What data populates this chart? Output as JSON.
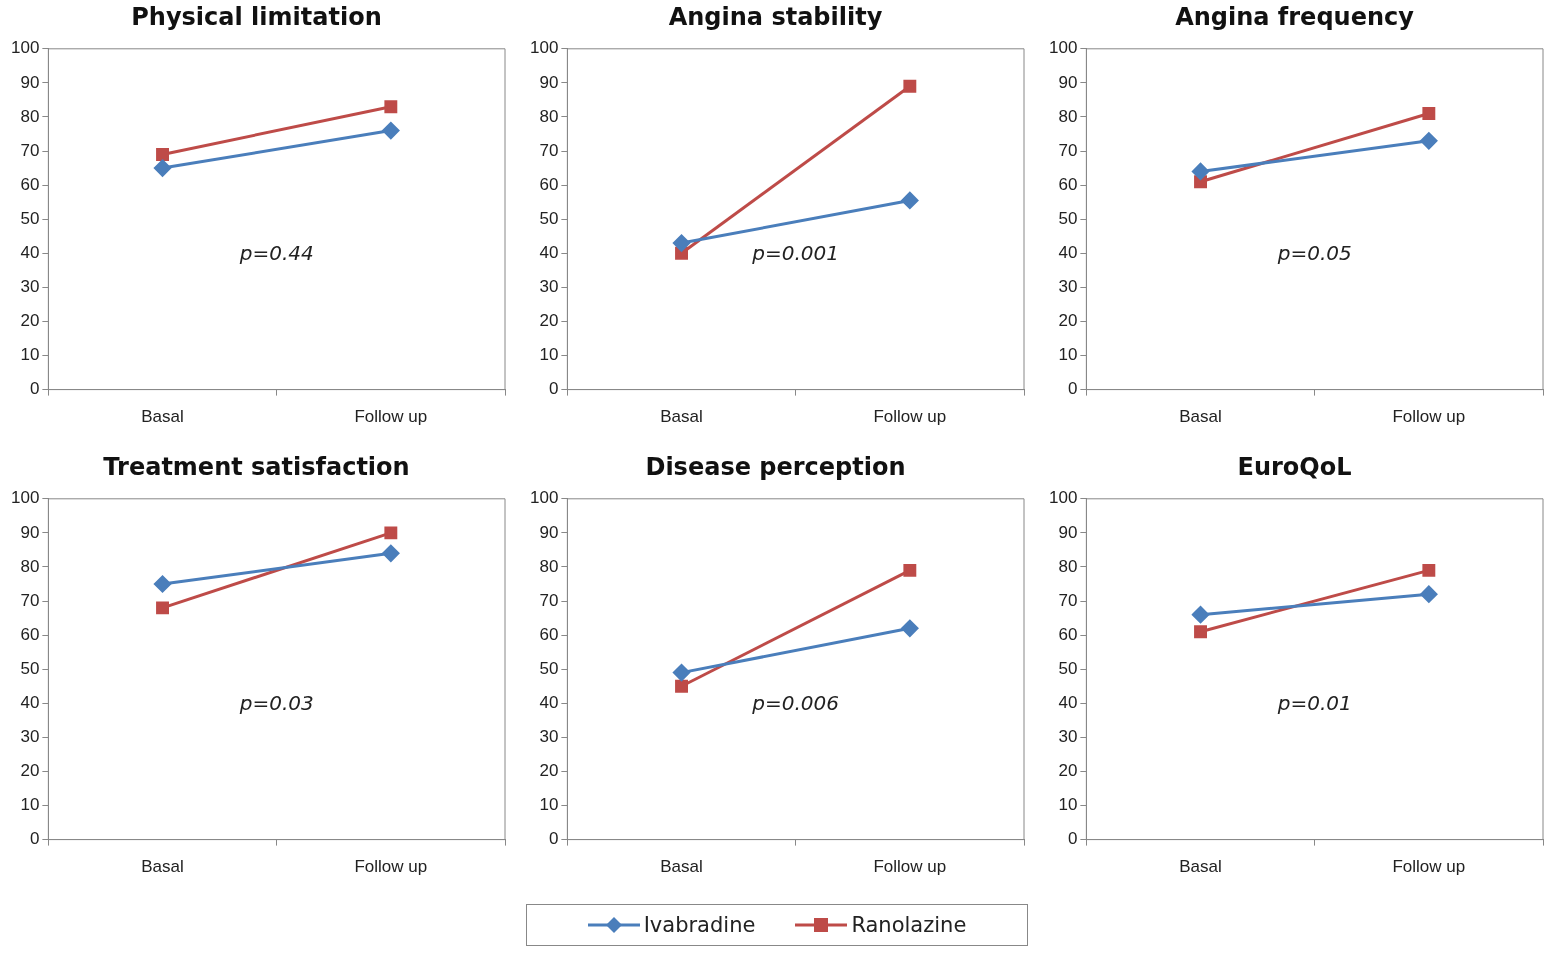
{
  "chart_data": [
    {
      "type": "line",
      "title": "Physical limitation",
      "categories": [
        "Basal",
        "Follow up"
      ],
      "ylim": [
        0,
        100
      ],
      "yticks": [
        0,
        10,
        20,
        30,
        40,
        50,
        60,
        70,
        80,
        90,
        100
      ],
      "grid": false,
      "legend": "bottom",
      "annotations": [
        "p=0.44"
      ],
      "series": [
        {
          "name": "Ivabradine",
          "color": "#4a7ebb",
          "marker": "diamond",
          "values": [
            65,
            76
          ]
        },
        {
          "name": "Ranolazine",
          "color": "#be4b48",
          "marker": "square",
          "values": [
            69,
            83
          ]
        }
      ]
    },
    {
      "type": "line",
      "title": "Angina stability",
      "categories": [
        "Basal",
        "Follow up"
      ],
      "ylim": [
        0,
        100
      ],
      "yticks": [
        0,
        10,
        20,
        30,
        40,
        50,
        60,
        70,
        80,
        90,
        100
      ],
      "grid": false,
      "annotations": [
        "p=0.001"
      ],
      "series": [
        {
          "color": "#4a7ebb",
          "marker": "diamond",
          "values": [
            43,
            55.5
          ]
        },
        {
          "color": "#be4b48",
          "marker": "square",
          "values": [
            40,
            89
          ]
        }
      ]
    },
    {
      "type": "line",
      "title": "Angina frequency",
      "categories": [
        "Basal",
        "Follow up"
      ],
      "ylim": [
        0,
        100
      ],
      "yticks": [
        0,
        10,
        20,
        30,
        40,
        50,
        60,
        70,
        80,
        90,
        100
      ],
      "grid": false,
      "annotations": [
        "p=0.05"
      ],
      "series": [
        {
          "color": "#4a7ebb",
          "marker": "diamond",
          "values": [
            64,
            73
          ]
        },
        {
          "color": "#be4b48",
          "marker": "square",
          "values": [
            61,
            81
          ]
        }
      ]
    },
    {
      "type": "line",
      "title": "Treatment satisfaction",
      "categories": [
        "Basal",
        "Follow up"
      ],
      "ylim": [
        0,
        100
      ],
      "yticks": [
        0,
        10,
        20,
        30,
        40,
        50,
        60,
        70,
        80,
        90,
        100
      ],
      "grid": false,
      "annotations": [
        "p=0.03"
      ],
      "series": [
        {
          "color": "#4a7ebb",
          "marker": "diamond",
          "values": [
            75,
            84
          ]
        },
        {
          "color": "#be4b48",
          "marker": "square",
          "values": [
            68,
            90
          ]
        }
      ]
    },
    {
      "type": "line",
      "title": "Disease perception",
      "categories": [
        "Basal",
        "Follow up"
      ],
      "ylim": [
        0,
        100
      ],
      "yticks": [
        0,
        10,
        20,
        30,
        40,
        50,
        60,
        70,
        80,
        90,
        100
      ],
      "grid": false,
      "annotations": [
        "p=0.006"
      ],
      "series": [
        {
          "color": "#4a7ebb",
          "marker": "diamond",
          "values": [
            49,
            62
          ]
        },
        {
          "color": "#be4b48",
          "marker": "square",
          "values": [
            45,
            79
          ]
        }
      ]
    },
    {
      "type": "line",
      "title": "EuroQoL",
      "categories": [
        "Basal",
        "Follow up"
      ],
      "ylim": [
        0,
        100
      ],
      "yticks": [
        0,
        10,
        20,
        30,
        40,
        50,
        60,
        70,
        80,
        90,
        100
      ],
      "grid": false,
      "annotations": [
        "p=0.01"
      ],
      "series": [
        {
          "color": "#4a7ebb",
          "marker": "diamond",
          "values": [
            66,
            72
          ]
        },
        {
          "color": "#be4b48",
          "marker": "square",
          "values": [
            61,
            79
          ]
        }
      ]
    }
  ]
}
